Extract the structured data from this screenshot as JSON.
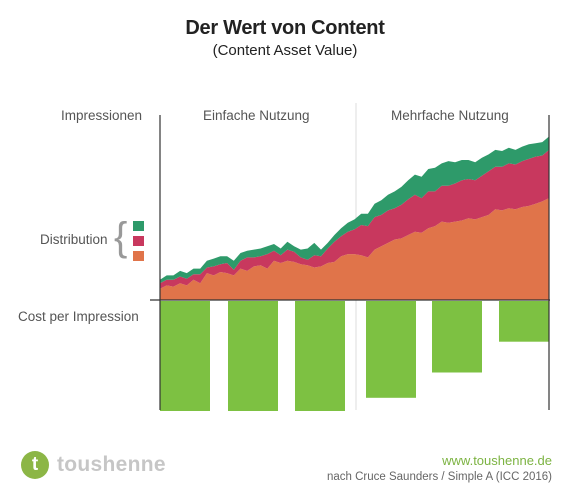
{
  "header": {
    "title": "Der Wert von Content",
    "subtitle": "(Content Asset Value)"
  },
  "labels": {
    "impressions": "Impressionen",
    "distribution": "Distribution",
    "cost_per_impression": "Cost per Impression",
    "brace": "{"
  },
  "sections": {
    "single_use": "Einfache Nutzung",
    "multiple_use": "Mehrfache Nutzung"
  },
  "colors": {
    "green": "#2e9a6a",
    "crimson": "#c8385e",
    "orange": "#e0744a",
    "cost_green": "#7dc142",
    "axis": "#333333",
    "divider": "#dddddd"
  },
  "footer": {
    "logo_letter": "t",
    "logo_text": "toushenne",
    "website": "www.toushenne.de",
    "credit": "nach Cruce Saunders / Simple A (ICC 2016)"
  },
  "chart_data": {
    "type": "area",
    "stacked": true,
    "x": [
      0,
      1,
      2,
      3,
      4,
      5,
      6,
      7,
      8,
      9,
      10,
      11,
      12,
      13,
      14,
      15,
      16,
      17,
      18,
      19,
      20,
      21,
      22,
      23,
      24,
      25,
      26,
      27,
      28,
      29,
      30,
      31,
      32,
      33,
      34,
      35,
      36,
      37,
      38,
      39,
      40,
      41,
      42,
      43,
      44,
      45,
      46,
      47,
      48,
      49,
      50,
      51,
      52,
      53,
      54,
      55,
      56,
      57,
      58
    ],
    "series": [
      {
        "color": "#e0744a",
        "values": [
          10,
          13,
          12,
          15,
          13,
          18,
          15,
          24,
          22,
          25,
          24,
          22,
          28,
          26,
          30,
          31,
          28,
          35,
          33,
          35,
          34,
          32,
          31,
          29,
          30,
          33,
          34,
          39,
          41,
          41,
          40,
          38,
          45,
          48,
          51,
          54,
          55,
          58,
          61,
          60,
          64,
          66,
          70,
          69,
          70,
          71,
          73,
          72,
          74,
          76,
          81,
          80,
          82,
          81,
          83,
          84,
          86,
          88,
          91
        ]
      },
      {
        "color": "#c8385e",
        "values": [
          5,
          5,
          6,
          6,
          6,
          5,
          8,
          5,
          8,
          7,
          9,
          5,
          7,
          12,
          8,
          8,
          13,
          9,
          7,
          10,
          9,
          6,
          5,
          11,
          9,
          13,
          18,
          18,
          20,
          22,
          27,
          28,
          29,
          28,
          29,
          28,
          30,
          32,
          33,
          31,
          33,
          31,
          32,
          33,
          34,
          36,
          35,
          35,
          37,
          39,
          38,
          39,
          40,
          40,
          41,
          42,
          42,
          41,
          43
        ]
      },
      {
        "color": "#2e9a6a",
        "values": [
          3,
          4,
          4,
          5,
          5,
          5,
          5,
          6,
          7,
          7,
          6,
          8,
          7,
          6,
          7,
          7,
          7,
          6,
          6,
          7,
          5,
          7,
          10,
          11,
          6,
          5,
          6,
          7,
          8,
          9,
          10,
          11,
          12,
          13,
          14,
          15,
          16,
          17,
          18,
          19,
          20,
          21,
          20,
          22,
          19,
          18,
          17,
          16,
          16,
          15,
          15,
          14,
          14,
          13,
          13,
          13,
          12,
          12,
          12
        ]
      }
    ],
    "cost_per_impression": {
      "color": "#7dc142",
      "values": [
        100,
        100,
        100,
        88,
        65,
        37
      ]
    },
    "groups": [
      "Einfache Nutzung",
      "Mehrfache Nutzung"
    ],
    "ylabel": "Impressionen"
  }
}
